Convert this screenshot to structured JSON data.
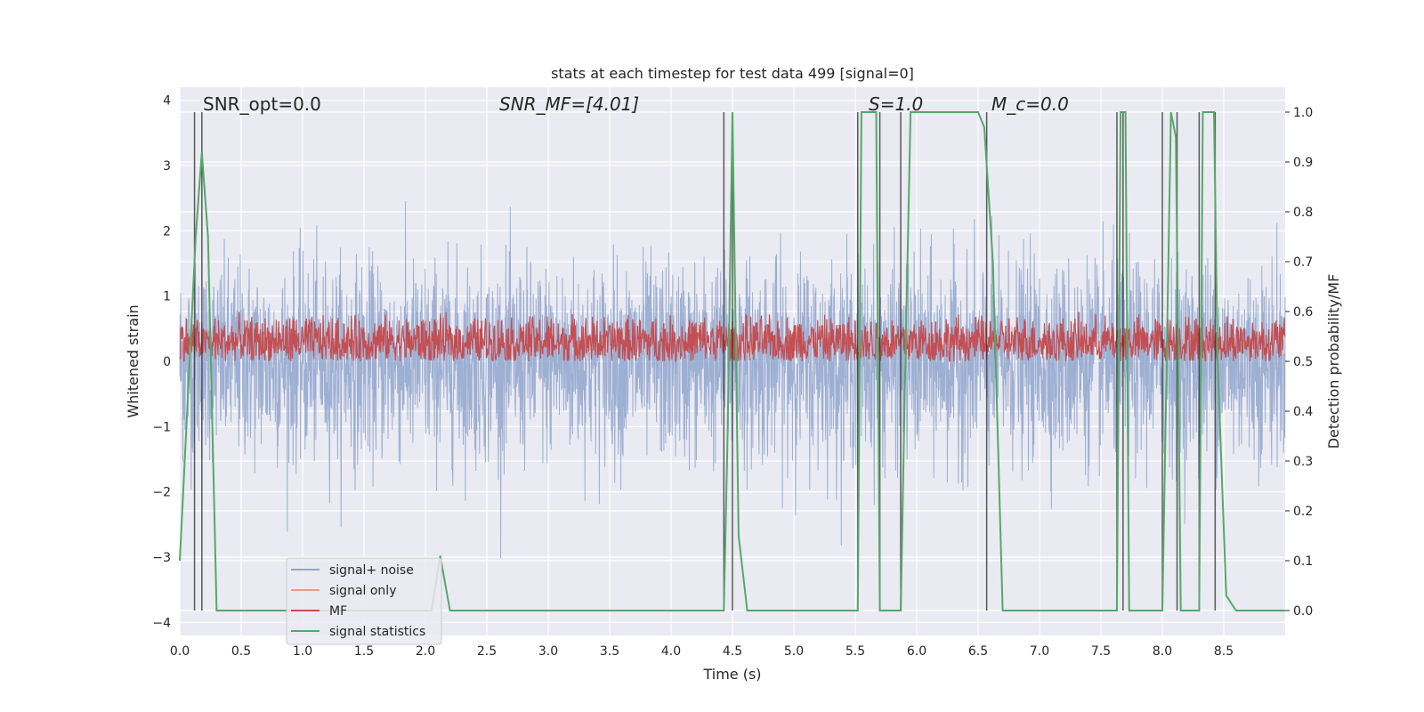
{
  "chart_data": {
    "type": "line",
    "title": "stats at each timestep for test data 499 [signal=0]",
    "xlabel": "Time (s)",
    "ylabel": "Whitened strain",
    "y2label": "Detection probability/MF",
    "xlim": [
      0,
      9
    ],
    "ylim": [
      -4.2,
      4.2
    ],
    "y2lim": [
      -0.05,
      1.05
    ],
    "xticks": [
      "0.0",
      "0.5",
      "1.0",
      "1.5",
      "2.0",
      "2.5",
      "3.0",
      "3.5",
      "4.0",
      "4.5",
      "5.0",
      "5.5",
      "6.0",
      "6.5",
      "7.0",
      "7.5",
      "8.0",
      "8.5"
    ],
    "yticks": [
      "4",
      "3",
      "2",
      "1",
      "0",
      "−1",
      "−2",
      "−3",
      "−4"
    ],
    "y2ticks": [
      "1.0",
      "0.9",
      "0.8",
      "0.7",
      "0.6",
      "0.5",
      "0.4",
      "0.3",
      "0.2",
      "0.1",
      "0.0"
    ],
    "grid": true,
    "legend_position": "lower-left",
    "annotations": {
      "snr_opt": "SNR_opt=0.0",
      "snr_mf": "SNR_MF=[4.01]",
      "s": "S=1.0",
      "mc": "M_c=0.0"
    },
    "series": [
      {
        "name": "signal+ noise",
        "color": "#8fa5cc",
        "sigma": 0.75,
        "peak_range": [
          -3.6,
          3.6
        ]
      },
      {
        "name": "signal only",
        "color": "#e8a07f",
        "values": []
      },
      {
        "name": "MF",
        "color": "#c44e52",
        "axis": "right",
        "range": [
          0.5,
          0.6
        ]
      },
      {
        "name": "signal statistics",
        "color": "#55a868",
        "axis": "right",
        "x": [
          0,
          0.07,
          0.13,
          0.18,
          0.23,
          0.3,
          0.5,
          1.0,
          1.5,
          2.0,
          2.05,
          2.12,
          2.2,
          2.5,
          3.0,
          3.5,
          4.0,
          4.43,
          4.46,
          4.5,
          4.55,
          4.62,
          5.0,
          5.52,
          5.55,
          5.67,
          5.7,
          5.75,
          5.8,
          5.87,
          5.9,
          5.95,
          6.0,
          6.5,
          6.55,
          6.62,
          6.7,
          7.0,
          7.5,
          7.63,
          7.66,
          7.7,
          7.73,
          7.75,
          8.0,
          8.07,
          8.11,
          8.15,
          8.3,
          8.33,
          8.37,
          8.42,
          8.45,
          8.52,
          8.6,
          8.72,
          9.0
        ],
        "y": [
          0.1,
          0.45,
          0.75,
          0.92,
          0.75,
          0.0,
          0.0,
          0.0,
          0.0,
          0.0,
          0.0,
          0.11,
          0.0,
          0.0,
          0.0,
          0.0,
          0.0,
          0.0,
          0.35,
          1.0,
          0.15,
          0.0,
          0.0,
          0.0,
          1.0,
          1.0,
          0.0,
          0.0,
          0.0,
          0.0,
          0.4,
          1.0,
          1.0,
          1.0,
          0.97,
          0.7,
          0.0,
          0.0,
          0.0,
          0.0,
          1.0,
          1.0,
          0.0,
          0.0,
          0.0,
          1.0,
          0.95,
          0.0,
          0.0,
          1.0,
          1.0,
          1.0,
          0.5,
          0.03,
          0.0,
          0.0,
          0.0
        ]
      }
    ],
    "vlines": [
      0.12,
      0.18,
      4.43,
      4.5,
      5.52,
      5.7,
      5.87,
      6.57,
      7.63,
      7.68,
      8.0,
      8.12,
      8.3,
      8.43
    ]
  }
}
